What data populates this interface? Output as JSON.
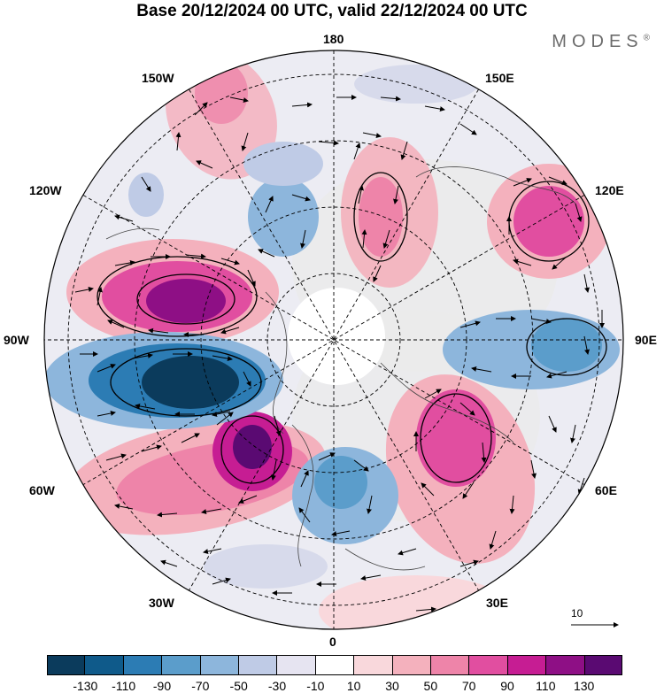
{
  "title": "Base 20/12/2024 00 UTC, valid 22/12/2024 00 UTC",
  "brand": "MODES",
  "brand_mark": "®",
  "longitude_labels": {
    "n": "180",
    "nw": "150W",
    "ne": "150E",
    "wnw": "120W",
    "ene": "120E",
    "w": "90W",
    "e": "90E",
    "wsw": "60W",
    "ese": "60E",
    "sw": "30W",
    "se": "30E",
    "s": "0"
  },
  "vector_reference": "10",
  "colors": {
    "neg_max": "#0c3b5a",
    "neg_min": "#e8e6f2",
    "neutral": "#ffffff",
    "pos_min": "#fbe0e3",
    "pos_max": "#4a0a6e",
    "land": "#ebebeb"
  },
  "legend": {
    "ticks": [
      "-130",
      "-110",
      "-90",
      "-70",
      "-50",
      "-30",
      "-10",
      "10",
      "30",
      "50",
      "70",
      "90",
      "110",
      "130"
    ],
    "bins": [
      "#0b3b5c",
      "#0f5a8a",
      "#2c7cb4",
      "#5b9dcb",
      "#8db6dc",
      "#bfcbe6",
      "#e6e4f1",
      "#ffffff",
      "#f9d8dc",
      "#f4b1bd",
      "#ee84a9",
      "#e14ea0",
      "#c61d93",
      "#8e0f85",
      "#5a0a72"
    ]
  }
}
